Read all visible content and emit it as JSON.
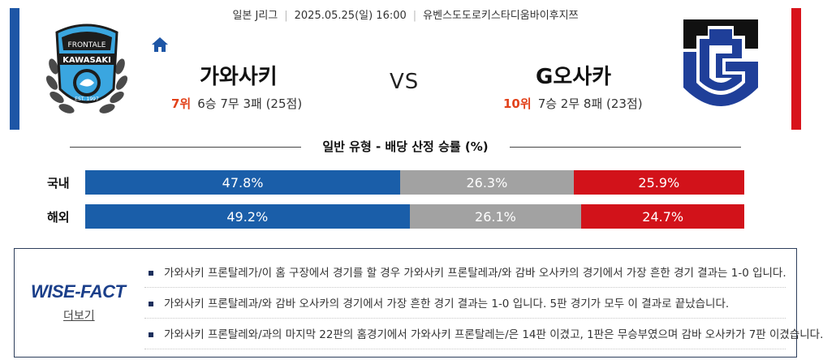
{
  "header": {
    "league": "일본 J리그",
    "datetime": "2025.05.25(일) 16:00",
    "venue": "유벤스도도로키스타디움바이후지쯔"
  },
  "home": {
    "name": "가와사키",
    "rank": "7위",
    "record": "6승 7무 3패 (25점)",
    "logo_text_top": "FRONTALE",
    "logo_text_main": "KAWASAKI",
    "logo_text_est": "EST. 1997",
    "color": "#1e56a6"
  },
  "away": {
    "name": "G오사카",
    "rank": "10위",
    "record": "7승 2무 8패 (23점)",
    "color": "#d8131b"
  },
  "vs_label": "VS",
  "section_title": "일반 유형 - 배당 산정 승률 (%)",
  "rows": [
    {
      "label": "국내",
      "win": "47.8%",
      "draw": "26.3%",
      "loss": "25.9%",
      "win_pct": 47.8,
      "draw_pct": 26.3,
      "loss_pct": 25.9
    },
    {
      "label": "해외",
      "win": "49.2%",
      "draw": "26.1%",
      "loss": "24.7%",
      "win_pct": 49.2,
      "draw_pct": 26.1,
      "loss_pct": 24.7
    }
  ],
  "wise_fact": {
    "brand": "WISE-FACT",
    "more_label": "더보기",
    "items": [
      "가와사키 프론탈레가/이 홈 구장에서 경기를 할 경우 가와사키 프론탈레과/와 감바 오사카의 경기에서 가장 흔한 경기 결과는 1-0 입니다.",
      "가와사키 프론탈레과/와 감바 오사카의 경기에서 가장 흔한 경기 결과는 1-0 입니다. 5판 경기가 모두 이 결과로 끝났습니다.",
      "가와사키 프론탈레와/과의 마지막 22판의 홈경기에서 가와사키 프론탈레는/은 14판 이겼고, 1판은 무승부였으며 감바 오사카가 7판 이겼습니다."
    ]
  },
  "colors": {
    "win": "#1a5ea9",
    "draw": "#a2a2a2",
    "loss": "#d2121a",
    "rank": "#e2421b"
  },
  "icons": {
    "home": "home-icon"
  }
}
